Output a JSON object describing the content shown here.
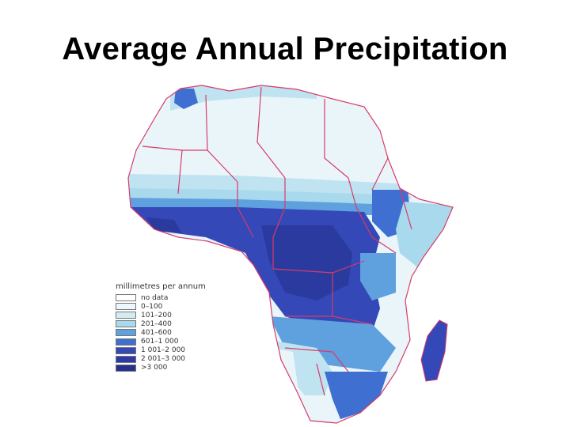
{
  "title": "Average Annual Precipitation",
  "legend": {
    "title": "millimetres per annum",
    "items": [
      {
        "label": "no data",
        "color": "#ffffff"
      },
      {
        "label": "0–100",
        "color": "#eef7fb"
      },
      {
        "label": "101–200",
        "color": "#d3ecf4"
      },
      {
        "label": "201–400",
        "color": "#a9d9ec"
      },
      {
        "label": "401–600",
        "color": "#5fa0de"
      },
      {
        "label": "601–1 000",
        "color": "#3f6fd0"
      },
      {
        "label": "1 001–2 000",
        "color": "#3448b8"
      },
      {
        "label": "2 001–3 000",
        "color": "#2c3aa6"
      },
      {
        "label": ">3 000",
        "color": "#25318f"
      }
    ]
  },
  "colors": {
    "sahara": "#e9f5f9",
    "sahel": "#bfe3f0",
    "wet": "#3448b8",
    "wettest": "#2a3a9e",
    "medium": "#5fa0de",
    "borders": "#d93a6a"
  }
}
